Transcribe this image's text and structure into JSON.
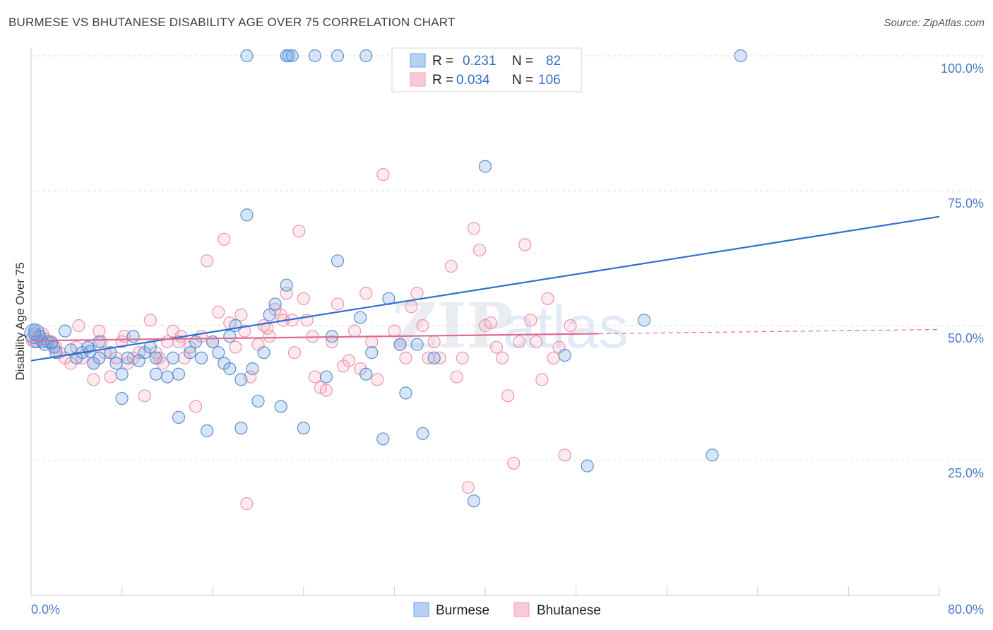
{
  "title": "BURMESE VS BHUTANESE DISABILITY AGE OVER 75 CORRELATION CHART",
  "source": "Source: ZipAtlas.com",
  "colors": {
    "burmese": "#6fa0e0",
    "burmese_line": "#2f6fcf",
    "bhutanese": "#f0a0b8",
    "bhutanese_line": "#e06a90",
    "tick_text": "#4a7cc9",
    "grid": "#dddddd"
  },
  "legend": {
    "rows": [
      {
        "r_label": "R =",
        "r_value": "0.231",
        "n_label": "N =",
        "n_value": "82"
      },
      {
        "r_label": "R =",
        "r_value": "0.034",
        "n_label": "N =",
        "n_value": "106"
      }
    ]
  },
  "chart_data": {
    "type": "scatter",
    "xlabel": "",
    "ylabel": "Disability Age Over 75",
    "xlim": [
      0,
      80
    ],
    "ylim": [
      0,
      100
    ],
    "x_tick_labels": [
      "0.0%",
      "80.0%"
    ],
    "y_tick_labels": [
      "100.0%",
      "75.0%",
      "50.0%",
      "25.0%"
    ],
    "y_tick_values": [
      100,
      75,
      50,
      25
    ],
    "grid": true,
    "legend_position": "top-center",
    "series": [
      {
        "name": "Burmese",
        "color": "#6fa0e0",
        "trend": {
          "x": [
            0,
            80
          ],
          "y": [
            43.5,
            70.2
          ]
        },
        "points": [
          [
            0.3,
            49
          ],
          [
            0.5,
            47
          ],
          [
            0.8,
            48
          ],
          [
            1,
            47
          ],
          [
            1.2,
            46.5
          ],
          [
            1.5,
            47
          ],
          [
            2,
            46
          ],
          [
            2.2,
            45
          ],
          [
            3,
            49
          ],
          [
            3.5,
            45.5
          ],
          [
            4,
            44
          ],
          [
            4.5,
            45
          ],
          [
            5,
            46
          ],
          [
            5.5,
            43
          ],
          [
            6,
            44
          ],
          [
            6,
            47
          ],
          [
            7,
            45
          ],
          [
            7.5,
            43
          ],
          [
            8,
            41
          ],
          [
            8,
            36.5
          ],
          [
            8.5,
            44
          ],
          [
            9,
            48
          ],
          [
            9.5,
            43.5
          ],
          [
            10,
            45
          ],
          [
            10.5,
            46
          ],
          [
            11,
            44
          ],
          [
            11,
            41
          ],
          [
            12,
            40.5
          ],
          [
            12.5,
            44
          ],
          [
            13,
            41
          ],
          [
            13,
            33
          ],
          [
            14,
            45
          ],
          [
            14.5,
            47
          ],
          [
            15,
            44
          ],
          [
            15.5,
            30.5
          ],
          [
            16,
            47
          ],
          [
            16.5,
            45
          ],
          [
            17,
            43
          ],
          [
            17.5,
            42
          ],
          [
            17.5,
            48
          ],
          [
            18,
            50
          ],
          [
            18.5,
            40
          ],
          [
            18.5,
            31
          ],
          [
            19,
            70.5
          ],
          [
            19.5,
            42
          ],
          [
            20,
            36
          ],
          [
            20.5,
            45
          ],
          [
            21,
            52
          ],
          [
            21.5,
            54
          ],
          [
            22,
            35
          ],
          [
            22.5,
            57.5
          ],
          [
            24,
            31
          ],
          [
            26,
            40.5
          ],
          [
            26.5,
            48
          ],
          [
            27,
            62
          ],
          [
            29,
            51.5
          ],
          [
            29.5,
            41
          ],
          [
            30,
            45
          ],
          [
            31,
            29
          ],
          [
            31.5,
            55
          ],
          [
            32.5,
            46.5
          ],
          [
            33,
            37.5
          ],
          [
            34,
            46.5
          ],
          [
            34.5,
            30
          ],
          [
            35.5,
            44
          ],
          [
            39,
            17.5
          ],
          [
            40,
            79.5
          ],
          [
            47,
            44.5
          ],
          [
            49,
            24
          ],
          [
            54,
            51
          ],
          [
            60,
            26
          ],
          [
            19,
            100
          ],
          [
            22.5,
            100
          ],
          [
            22.7,
            100
          ],
          [
            23,
            100
          ],
          [
            25,
            100
          ],
          [
            27,
            100
          ],
          [
            29.5,
            100
          ],
          [
            62.5,
            100
          ],
          [
            0.3,
            48.5
          ],
          [
            1.8,
            46.8
          ],
          [
            5.2,
            45.2
          ]
        ]
      },
      {
        "name": "Bhutanese",
        "color": "#f0a0b8",
        "trend": {
          "x": [
            0,
            50
          ],
          "y": [
            47.2,
            48.5
          ]
        },
        "points": [
          [
            0.3,
            47
          ],
          [
            0.6,
            48
          ],
          [
            1,
            48.5
          ],
          [
            1.3,
            47.5
          ],
          [
            1.8,
            47
          ],
          [
            2.2,
            46
          ],
          [
            2.5,
            45
          ],
          [
            3,
            44
          ],
          [
            3.5,
            43
          ],
          [
            4,
            46
          ],
          [
            4.2,
            50
          ],
          [
            4.5,
            44
          ],
          [
            5,
            46
          ],
          [
            5.5,
            43
          ],
          [
            5.5,
            40
          ],
          [
            6,
            49
          ],
          [
            6.2,
            47
          ],
          [
            6.5,
            45
          ],
          [
            7,
            40.5
          ],
          [
            7.5,
            44
          ],
          [
            8,
            47
          ],
          [
            8.2,
            48
          ],
          [
            8.5,
            43
          ],
          [
            9,
            44
          ],
          [
            9.5,
            45
          ],
          [
            10,
            37
          ],
          [
            10.5,
            51
          ],
          [
            11,
            45
          ],
          [
            11.3,
            44
          ],
          [
            11.6,
            43
          ],
          [
            12,
            47
          ],
          [
            12.5,
            49
          ],
          [
            13,
            47
          ],
          [
            13.2,
            48
          ],
          [
            13.5,
            44
          ],
          [
            14,
            46
          ],
          [
            14.5,
            35
          ],
          [
            15,
            48
          ],
          [
            15.5,
            62
          ],
          [
            16,
            47
          ],
          [
            16.5,
            52.5
          ],
          [
            17,
            66
          ],
          [
            17.5,
            50.5
          ],
          [
            18,
            46
          ],
          [
            18.5,
            52
          ],
          [
            18.8,
            49
          ],
          [
            19,
            17
          ],
          [
            19.3,
            40.5
          ],
          [
            20,
            46.5
          ],
          [
            20.5,
            50
          ],
          [
            20.8,
            49.5
          ],
          [
            21,
            48
          ],
          [
            21.5,
            53
          ],
          [
            22,
            52
          ],
          [
            22.2,
            51
          ],
          [
            22.5,
            56
          ],
          [
            23,
            51
          ],
          [
            23.2,
            45
          ],
          [
            23.6,
            67.5
          ],
          [
            24,
            55
          ],
          [
            24.3,
            51
          ],
          [
            24.8,
            48
          ],
          [
            25,
            40.5
          ],
          [
            25.5,
            38.5
          ],
          [
            26,
            38
          ],
          [
            26.5,
            47
          ],
          [
            27,
            54
          ],
          [
            27.5,
            42.5
          ],
          [
            28,
            43.5
          ],
          [
            28.5,
            49
          ],
          [
            29,
            42
          ],
          [
            29.5,
            56
          ],
          [
            30,
            47
          ],
          [
            30.5,
            40
          ],
          [
            31,
            78
          ],
          [
            32,
            49
          ],
          [
            32.5,
            46.5
          ],
          [
            33,
            44
          ],
          [
            33.5,
            53.5
          ],
          [
            34,
            56
          ],
          [
            34.5,
            50
          ],
          [
            35,
            44
          ],
          [
            35.5,
            47
          ],
          [
            36,
            44
          ],
          [
            37,
            61
          ],
          [
            37.5,
            40.5
          ],
          [
            38,
            44
          ],
          [
            38.5,
            20
          ],
          [
            39,
            68
          ],
          [
            39.5,
            64
          ],
          [
            40,
            50
          ],
          [
            40.5,
            50.5
          ],
          [
            41,
            46
          ],
          [
            41.5,
            44
          ],
          [
            42,
            37
          ],
          [
            42.5,
            24.5
          ],
          [
            43,
            47
          ],
          [
            43.5,
            65
          ],
          [
            44,
            51
          ],
          [
            44.5,
            47
          ],
          [
            45,
            40
          ],
          [
            45.5,
            55
          ],
          [
            46,
            44
          ],
          [
            46.5,
            46
          ],
          [
            47,
            26
          ],
          [
            47.5,
            50
          ]
        ]
      }
    ]
  },
  "bottom_legend": [
    {
      "name": "Burmese"
    },
    {
      "name": "Bhutanese"
    }
  ],
  "watermark": {
    "zip": "ZIP",
    "atlas": "atlas"
  }
}
